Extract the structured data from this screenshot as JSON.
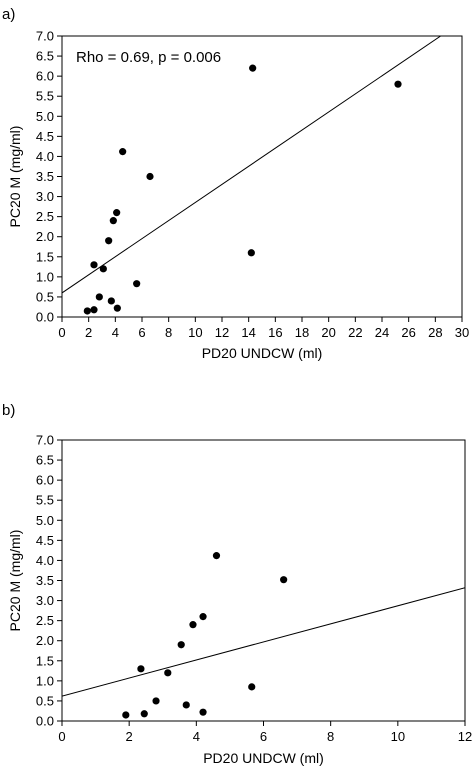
{
  "chart_data": [
    {
      "type": "scatter",
      "panel_label": "a)",
      "annotation": "Rho = 0.69, p = 0.006",
      "xlabel": "PD20 UNDCW (ml)",
      "ylabel": "PC20 M (mg/ml)",
      "xlim": [
        0,
        30
      ],
      "ylim": [
        0,
        7
      ],
      "x_ticks": [
        0,
        2,
        4,
        6,
        8,
        10,
        12,
        14,
        16,
        18,
        20,
        22,
        24,
        26,
        28,
        30
      ],
      "x_tick_labels": [
        "0",
        "2",
        "4",
        "6",
        "8",
        "10",
        "12",
        "14",
        "16",
        "18",
        "20",
        "22",
        "24",
        "26",
        "28",
        "30"
      ],
      "y_ticks": [
        0,
        0.5,
        1,
        1.5,
        2,
        2.5,
        3,
        3.5,
        4,
        4.5,
        5,
        5.5,
        6,
        6.5,
        7
      ],
      "y_tick_labels": [
        "0.0",
        "0.5",
        "1.0",
        "1.5",
        "2.0",
        "2.5",
        "3.0",
        "3.5",
        "4.0",
        "4.5",
        "5.0",
        "5.5",
        "6.0",
        "6.5",
        "7.0"
      ],
      "grid": false,
      "points": [
        {
          "x": 1.9,
          "y": 0.15
        },
        {
          "x": 2.4,
          "y": 0.18
        },
        {
          "x": 2.4,
          "y": 1.3
        },
        {
          "x": 2.8,
          "y": 0.5
        },
        {
          "x": 3.1,
          "y": 1.2
        },
        {
          "x": 3.5,
          "y": 1.9
        },
        {
          "x": 3.7,
          "y": 0.4
        },
        {
          "x": 3.85,
          "y": 2.4
        },
        {
          "x": 4.1,
          "y": 2.6
        },
        {
          "x": 4.15,
          "y": 0.22
        },
        {
          "x": 4.55,
          "y": 4.12
        },
        {
          "x": 5.6,
          "y": 0.83
        },
        {
          "x": 6.6,
          "y": 3.5
        },
        {
          "x": 14.2,
          "y": 1.6
        },
        {
          "x": 14.3,
          "y": 6.2
        },
        {
          "x": 25.2,
          "y": 5.8
        }
      ],
      "trend_line": {
        "x": [
          0,
          28.4
        ],
        "y": [
          0.6,
          7.0
        ]
      }
    },
    {
      "type": "scatter",
      "panel_label": "b)",
      "xlabel": "PD20 UNDCW (ml)",
      "ylabel": "PC20 M (mg/ml)",
      "xlim": [
        0,
        12
      ],
      "ylim": [
        0,
        7
      ],
      "x_ticks": [
        0,
        2,
        4,
        6,
        8,
        10,
        12
      ],
      "x_tick_labels": [
        "0",
        "2",
        "4",
        "6",
        "8",
        "10",
        "12"
      ],
      "y_ticks": [
        0,
        0.5,
        1,
        1.5,
        2,
        2.5,
        3,
        3.5,
        4,
        4.5,
        5,
        5.5,
        6,
        6.5,
        7
      ],
      "y_tick_labels": [
        "0.0",
        "0.5",
        "1.0",
        "1.5",
        "2.0",
        "2.5",
        "3.0",
        "3.5",
        "4.0",
        "4.5",
        "5.0",
        "5.5",
        "6.0",
        "6.5",
        "7.0"
      ],
      "grid": false,
      "points": [
        {
          "x": 1.9,
          "y": 0.15
        },
        {
          "x": 2.45,
          "y": 0.18
        },
        {
          "x": 2.35,
          "y": 1.3
        },
        {
          "x": 2.8,
          "y": 0.5
        },
        {
          "x": 3.15,
          "y": 1.2
        },
        {
          "x": 3.55,
          "y": 1.9
        },
        {
          "x": 3.7,
          "y": 0.4
        },
        {
          "x": 3.9,
          "y": 2.4
        },
        {
          "x": 4.2,
          "y": 2.6
        },
        {
          "x": 4.2,
          "y": 0.22
        },
        {
          "x": 4.6,
          "y": 4.12
        },
        {
          "x": 5.65,
          "y": 0.85
        },
        {
          "x": 6.6,
          "y": 3.52
        }
      ],
      "trend_line": {
        "x": [
          0,
          12
        ],
        "y": [
          0.62,
          3.32
        ]
      }
    }
  ]
}
